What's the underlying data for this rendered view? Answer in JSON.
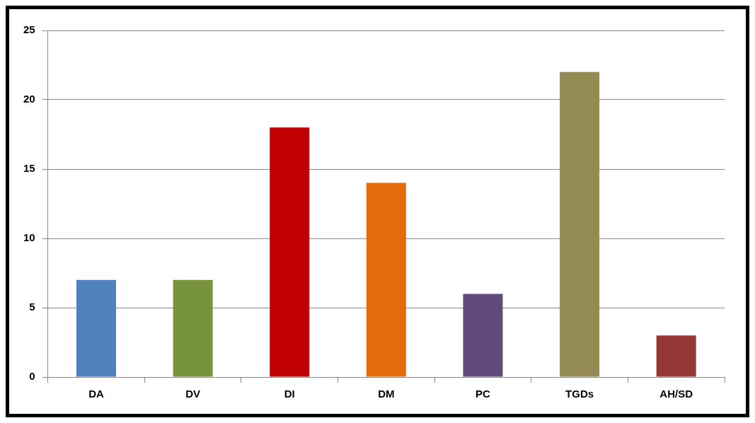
{
  "chart_data": {
    "type": "bar",
    "categories": [
      "DA",
      "DV",
      "DI",
      "DM",
      "PC",
      "TGDs",
      "AH/SD"
    ],
    "values": [
      7,
      7,
      18,
      14,
      6,
      22,
      3
    ],
    "colors": [
      "#4f81bd",
      "#77933c",
      "#c00000",
      "#e46c0a",
      "#604a7b",
      "#948a54",
      "#953735"
    ],
    "ylim": [
      0,
      25
    ],
    "yticks": [
      0,
      5,
      10,
      15,
      20,
      25
    ],
    "grid": "y",
    "legend": false
  }
}
